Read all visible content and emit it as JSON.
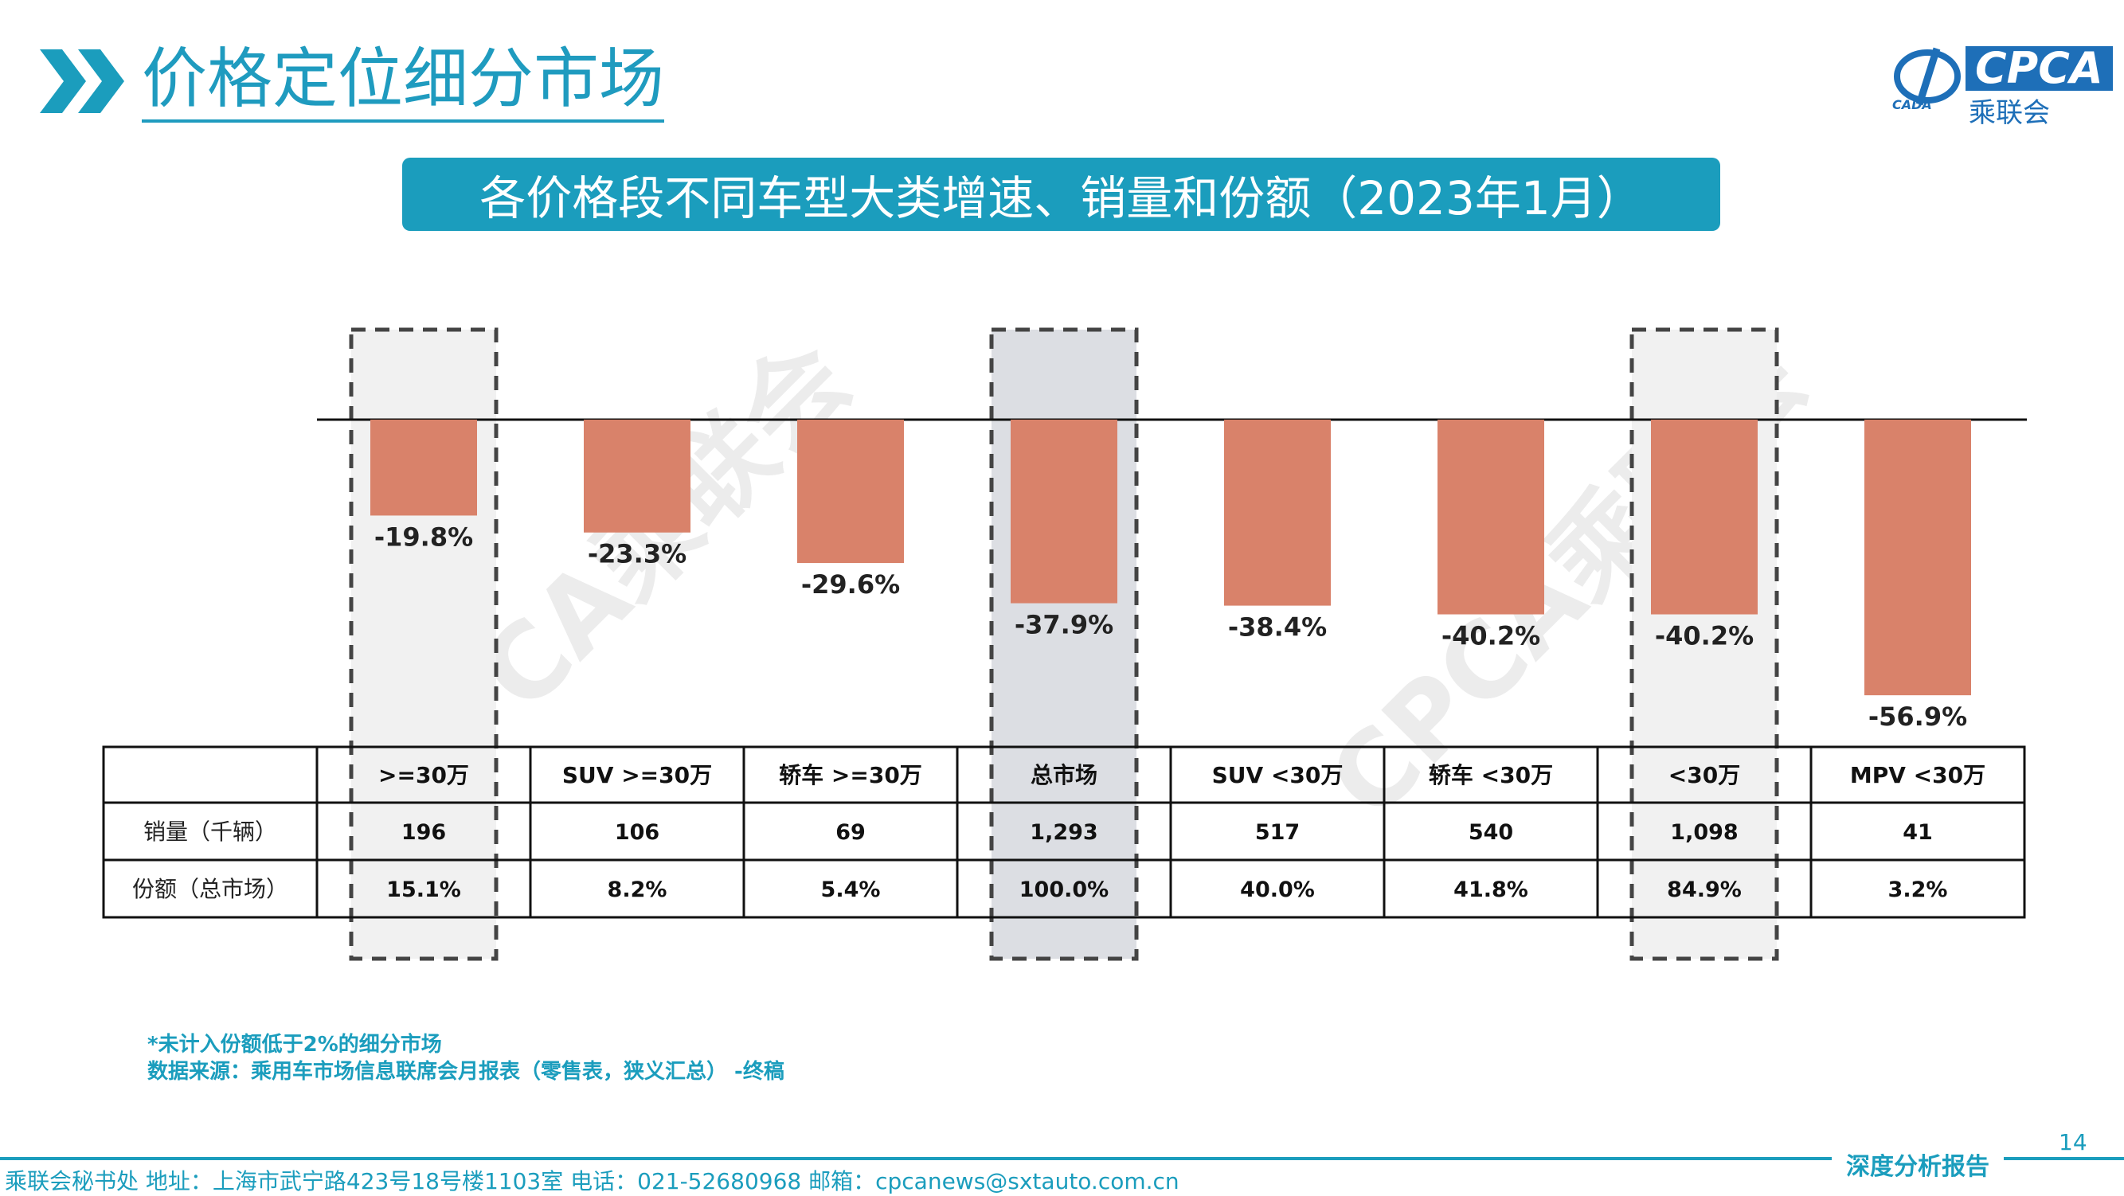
{
  "header": {
    "title": "价格定位细分市场",
    "logo_text": "CPCA",
    "logo_sub": "乘联会",
    "logo_small": "CADA"
  },
  "subtitle": "各价格段不同车型大类增速、销量和份额（2023年1月）",
  "watermark": "CPCA乘联会",
  "colors": {
    "accent": "#1b9dbd",
    "bar": "#d9826a",
    "highlight_fill": "#dcdee3",
    "light_fill": "#f1f1f1"
  },
  "chart_data": {
    "type": "bar",
    "categories": [
      ">=30万",
      "SUV >=30万",
      "轿车 >=30万",
      "总市场",
      "SUV <30万",
      "轿车 <30万",
      "<30万",
      "MPV <30万"
    ],
    "series": [
      {
        "values": [
          -19.8,
          -23.3,
          -29.6,
          -37.9,
          -38.4,
          -40.2,
          -40.2,
          -56.9
        ]
      }
    ],
    "value_labels": [
      "-19.8%",
      "-23.3%",
      "-29.6%",
      "-37.9%",
      "-38.4%",
      "-40.2%",
      "-40.2%",
      "-56.9%"
    ],
    "ylim": [
      -60,
      0
    ],
    "highlighted_categories": [
      ">=30万",
      "总市场",
      "<30万"
    ]
  },
  "table": {
    "row_labels": [
      "销量（千辆）",
      "份额（总市场）"
    ],
    "rows": [
      [
        "196",
        "106",
        "69",
        "1,293",
        "517",
        "540",
        "1,098",
        "41"
      ],
      [
        "15.1%",
        "8.2%",
        "5.4%",
        "100.0%",
        "40.0%",
        "41.8%",
        "84.9%",
        "3.2%"
      ]
    ]
  },
  "notes": [
    "*未计入份额低于2%的细分市场",
    "数据来源：乘用车市场信息联席会月报表（零售表，狭义汇总） -终稿"
  ],
  "page_number": "14",
  "footer": {
    "text": "乘联会秘书处   地址：上海市武宁路423号18号楼1103室   电话：021-52680968   邮箱：cpcanews@sxtauto.com.cn",
    "tag": "深度分析报告"
  }
}
